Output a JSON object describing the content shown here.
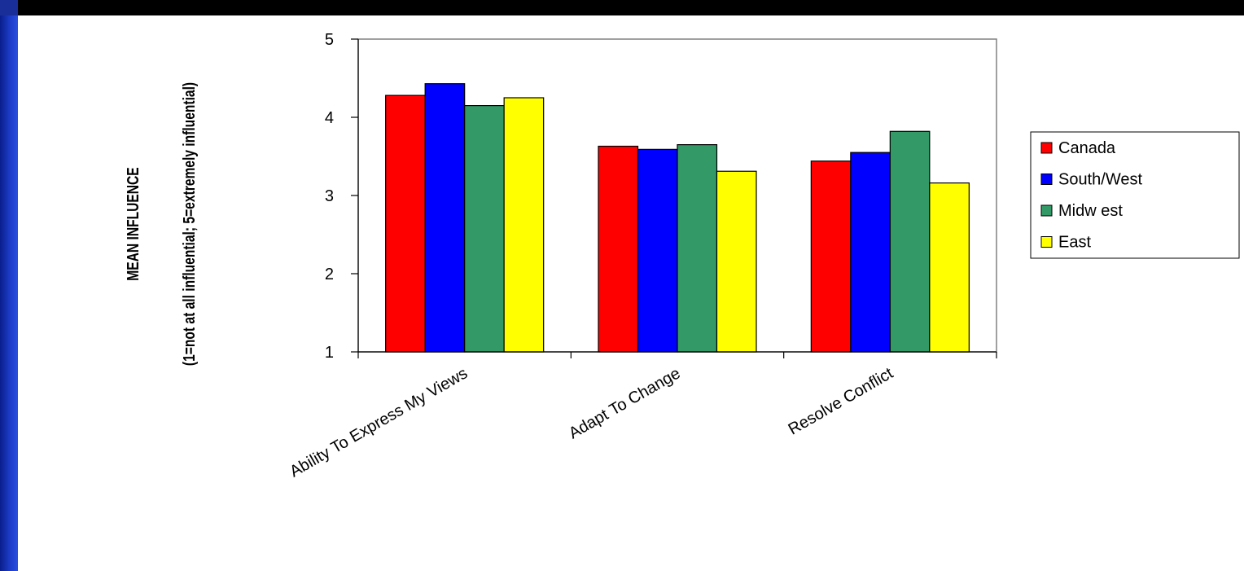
{
  "chart_data": {
    "type": "bar",
    "categories": [
      "Ability To Express My Views",
      "Adapt To Change",
      "Resolve Conflict"
    ],
    "series": [
      {
        "name": "Canada",
        "color": "#ff0000",
        "values": [
          4.28,
          3.63,
          3.44
        ]
      },
      {
        "name": "South/West",
        "color": "#0000ff",
        "values": [
          4.43,
          3.59,
          3.55
        ]
      },
      {
        "name": "Midw est",
        "color": "#339966",
        "values": [
          4.15,
          3.65,
          3.82
        ]
      },
      {
        "name": "East",
        "color": "#ffff00",
        "values": [
          4.25,
          3.31,
          3.16
        ]
      }
    ],
    "ylabel_line1": "MEAN INFLUENCE",
    "ylabel_line2": "(1=not at all influential; 5=extremely influential)",
    "ylim": [
      1,
      5
    ],
    "yticks": [
      1,
      2,
      3,
      4,
      5
    ],
    "grid": false,
    "legend_position": "right"
  }
}
